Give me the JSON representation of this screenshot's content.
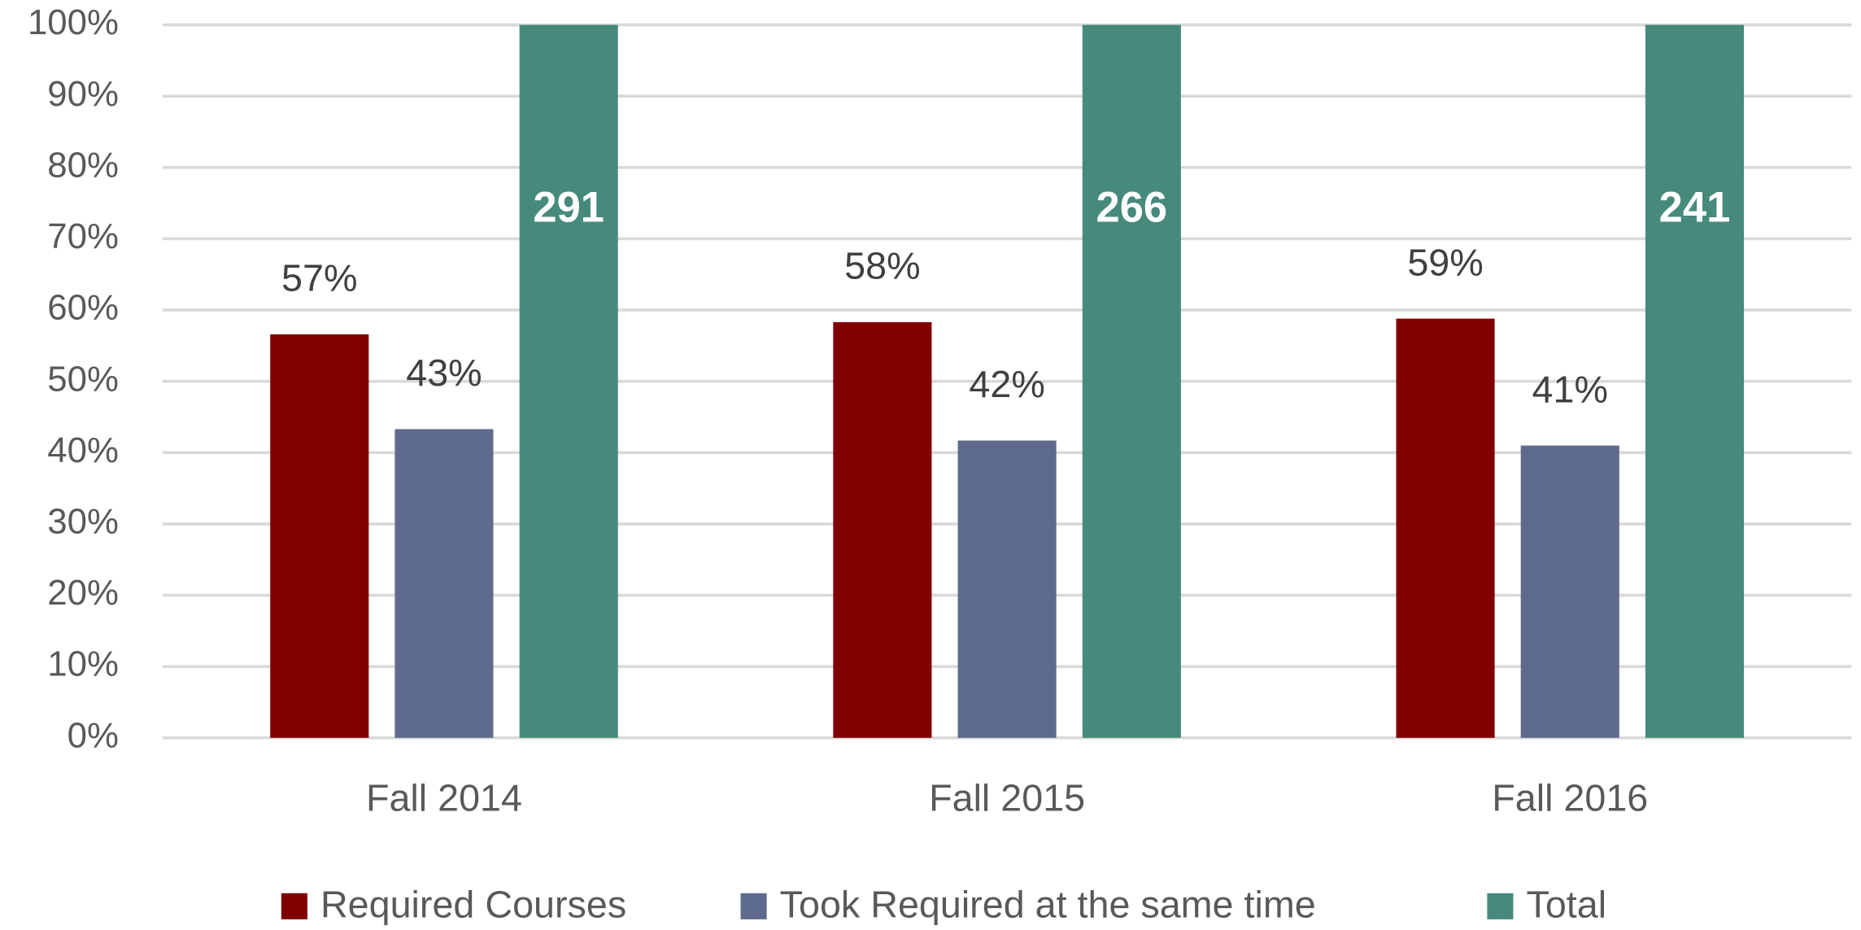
{
  "chart_data": {
    "type": "bar",
    "categories": [
      "Fall 2014",
      "Fall 2015",
      "Fall 2016"
    ],
    "series": [
      {
        "name": "Required Courses",
        "color": "#800000",
        "values": [
          56.6,
          58.3,
          58.8
        ],
        "value_labels": [
          "57%",
          "58%",
          "59%"
        ]
      },
      {
        "name": "Took Required at the same time",
        "color": "#5f6b8e",
        "values": [
          43.3,
          41.7,
          41.0
        ],
        "value_labels": [
          "43%",
          "42%",
          "41%"
        ]
      },
      {
        "name": "Total",
        "color": "#468a7c",
        "values": [
          100,
          100,
          100
        ],
        "counts": [
          "291",
          "266",
          "241"
        ]
      }
    ],
    "ylim": [
      0,
      100
    ],
    "yticks": [
      {
        "value": 0,
        "label": "0%"
      },
      {
        "value": 10,
        "label": "10%"
      },
      {
        "value": 20,
        "label": "20%"
      },
      {
        "value": 30,
        "label": "30%"
      },
      {
        "value": 40,
        "label": "40%"
      },
      {
        "value": 50,
        "label": "50%"
      },
      {
        "value": 60,
        "label": "60%"
      },
      {
        "value": 70,
        "label": "70%"
      },
      {
        "value": 80,
        "label": "80%"
      },
      {
        "value": 90,
        "label": "90%"
      },
      {
        "value": 100,
        "label": "100%"
      }
    ],
    "grid": true,
    "legend": "bottom"
  }
}
